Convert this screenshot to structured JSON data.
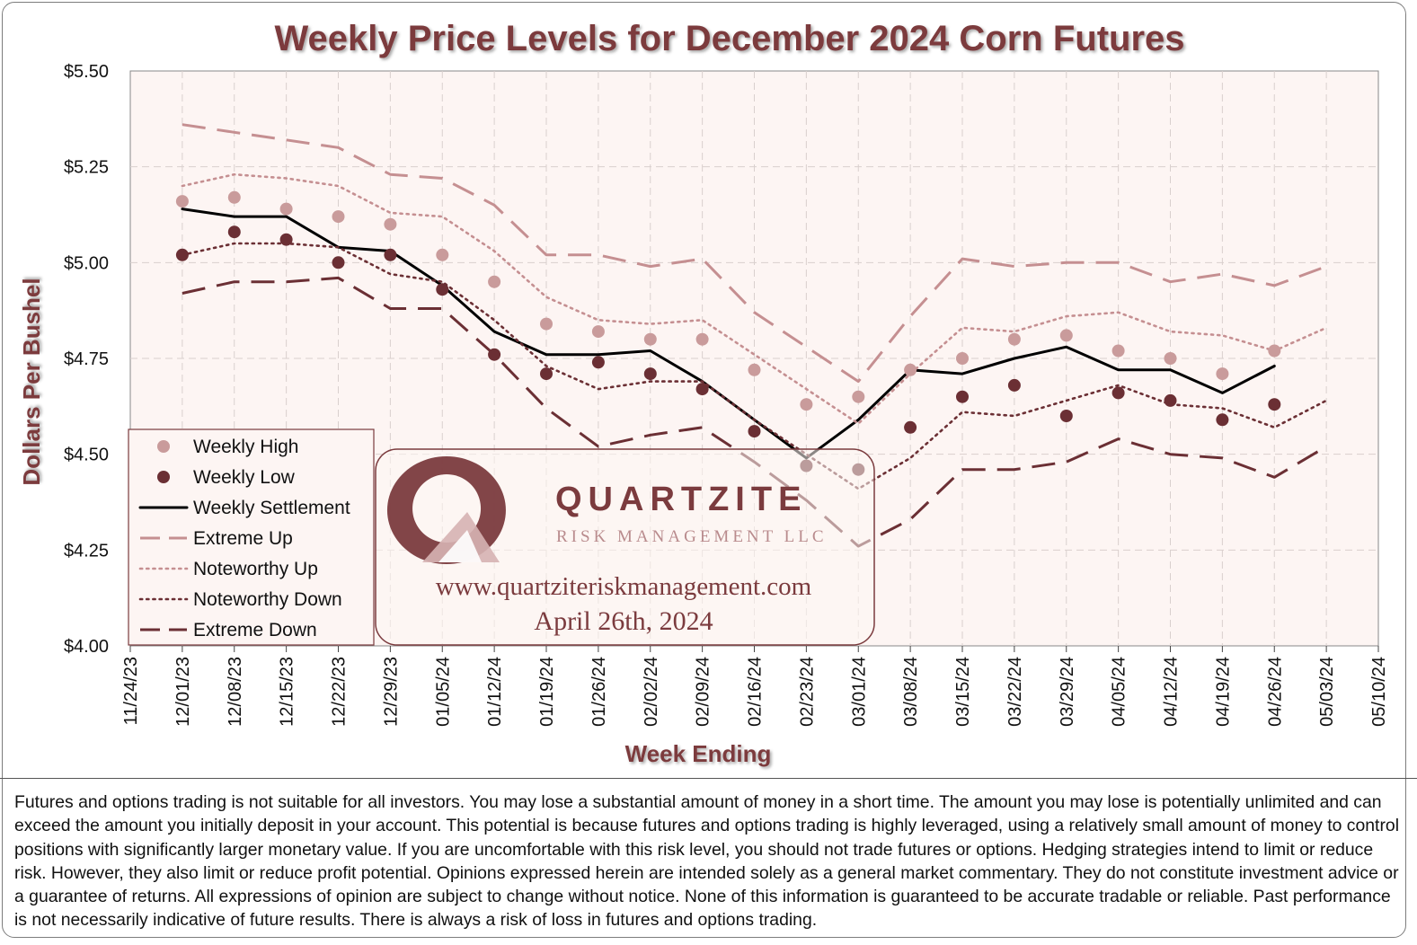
{
  "chart_data": {
    "type": "line",
    "title": "Weekly Price Levels for December 2024 Corn Futures",
    "xlabel": "Week Ending",
    "ylabel": "Dollars Per Bushel",
    "ylim": [
      4.0,
      5.5
    ],
    "yticks": [
      "$4.00",
      "$4.25",
      "$4.50",
      "$4.75",
      "$5.00",
      "$5.25",
      "$5.50"
    ],
    "ytick_values": [
      4.0,
      4.25,
      4.5,
      4.75,
      5.0,
      5.25,
      5.5
    ],
    "categories": [
      "11/24/23",
      "12/01/23",
      "12/08/23",
      "12/15/23",
      "12/22/23",
      "12/29/23",
      "01/05/24",
      "01/12/24",
      "01/19/24",
      "01/26/24",
      "02/02/24",
      "02/09/24",
      "02/16/24",
      "02/23/24",
      "03/01/24",
      "03/08/24",
      "03/15/24",
      "03/22/24",
      "03/29/24",
      "04/05/24",
      "04/12/24",
      "04/19/24",
      "04/26/24",
      "05/03/24",
      "05/10/24"
    ],
    "grid": true,
    "legend_position": "bottom-left",
    "series": [
      {
        "name": "Weekly High",
        "kind": "marker",
        "color": "#c99b9b",
        "values": [
          null,
          5.16,
          5.17,
          5.14,
          5.12,
          5.1,
          5.02,
          4.95,
          4.84,
          4.82,
          4.8,
          4.8,
          4.72,
          4.63,
          4.65,
          4.72,
          4.75,
          4.8,
          4.81,
          4.77,
          4.75,
          4.71,
          4.77,
          null,
          null
        ]
      },
      {
        "name": "Weekly Low",
        "kind": "marker",
        "color": "#6b2f34",
        "values": [
          null,
          5.02,
          5.08,
          5.06,
          5.0,
          5.02,
          4.93,
          4.76,
          4.71,
          4.74,
          4.71,
          4.67,
          4.56,
          4.47,
          4.46,
          4.57,
          4.65,
          4.68,
          4.6,
          4.66,
          4.64,
          4.59,
          4.63,
          null,
          null
        ]
      },
      {
        "name": "Weekly Settlement",
        "kind": "solid",
        "color": "#000000",
        "values": [
          null,
          5.14,
          5.12,
          5.12,
          5.04,
          5.03,
          4.94,
          4.82,
          4.76,
          4.76,
          4.77,
          4.69,
          4.59,
          4.49,
          4.59,
          4.72,
          4.71,
          4.75,
          4.78,
          4.72,
          4.72,
          4.66,
          4.73,
          null,
          null
        ]
      },
      {
        "name": "Extreme Up",
        "kind": "long-dash",
        "color": "#c58f91",
        "values": [
          null,
          5.36,
          5.34,
          5.32,
          5.3,
          5.23,
          5.22,
          5.15,
          5.02,
          5.02,
          4.99,
          5.01,
          4.87,
          4.78,
          4.69,
          4.86,
          5.01,
          4.99,
          5.0,
          5.0,
          4.95,
          4.97,
          4.94,
          4.99,
          null
        ]
      },
      {
        "name": "Noteworthy Up",
        "kind": "dotted",
        "color": "#c58f91",
        "values": [
          null,
          5.2,
          5.23,
          5.22,
          5.2,
          5.13,
          5.12,
          5.03,
          4.91,
          4.85,
          4.84,
          4.85,
          4.76,
          4.67,
          4.58,
          4.71,
          4.83,
          4.82,
          4.86,
          4.87,
          4.82,
          4.81,
          4.77,
          4.83,
          null
        ]
      },
      {
        "name": "Noteworthy Down",
        "kind": "dotted",
        "color": "#6b2f34",
        "values": [
          null,
          5.02,
          5.05,
          5.05,
          5.04,
          4.97,
          4.95,
          4.85,
          4.73,
          4.67,
          4.69,
          4.69,
          4.59,
          4.5,
          4.41,
          4.49,
          4.61,
          4.6,
          4.64,
          4.68,
          4.63,
          4.62,
          4.57,
          4.64,
          null
        ]
      },
      {
        "name": "Extreme Down",
        "kind": "long-dash",
        "color": "#6b2f34",
        "values": [
          null,
          4.92,
          4.95,
          4.95,
          4.96,
          4.88,
          4.88,
          4.76,
          4.62,
          4.52,
          4.55,
          4.57,
          4.48,
          4.38,
          4.26,
          4.33,
          4.46,
          4.46,
          4.48,
          4.54,
          4.5,
          4.49,
          4.44,
          4.52,
          null
        ]
      }
    ]
  },
  "watermark": {
    "brand_name": "QUARTZITE",
    "brand_sub": "RISK MANAGEMENT LLC",
    "url": "www.quartziteriskmanagement.com",
    "date": "April 26th, 2024"
  },
  "disclaimer": "Futures and options trading is not suitable for all investors. You may lose a substantial amount of money in a short time. The amount you may lose is potentially unlimited and can exceed the amount you initially deposit in your account. This potential is because futures and options trading is highly leveraged, using a relatively small amount of money to control positions with significantly larger monetary value. If you are uncomfortable with this risk level, you should not trade futures or options. Hedging strategies intend to limit or reduce risk. However, they also limit or reduce profit potential. Opinions expressed herein are intended solely as a general market commentary. They do not constitute investment advice or a guarantee of returns. All expressions of opinion are subject to change without notice. None of this information is guaranteed to be accurate tradable or reliable. Past performance is not necessarily indicative of future results. There is always a risk of loss in futures and options trading.",
  "colors": {
    "plot_background": "#fdf5f3",
    "title": "#7b3b3e",
    "accent_light": "#c99b9b",
    "accent_dark": "#6b2f34"
  }
}
